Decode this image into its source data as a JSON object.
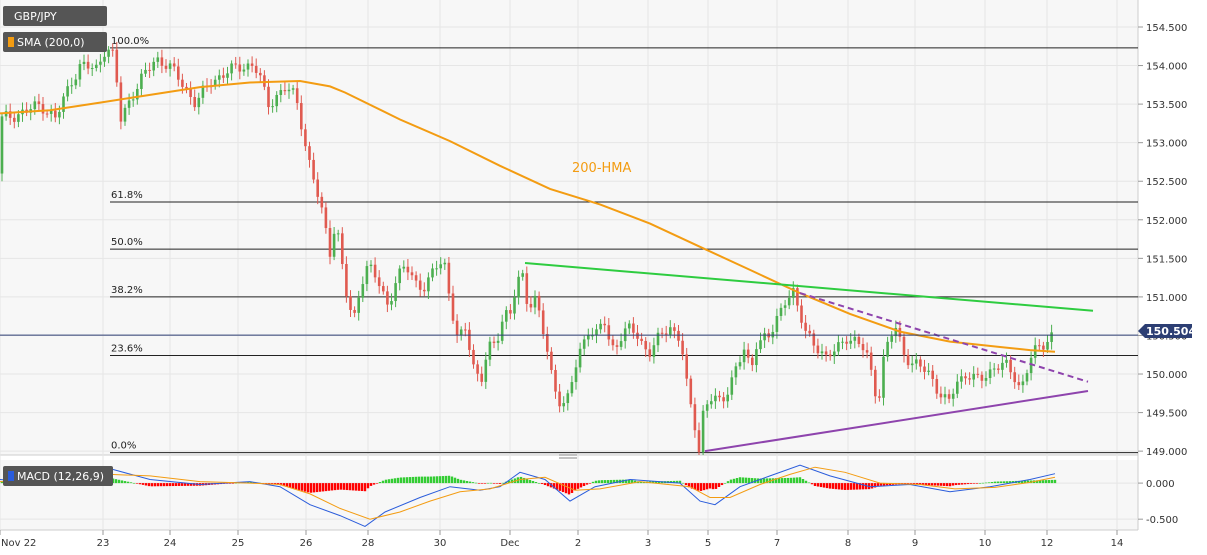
{
  "chart_data": [
    {
      "type": "candlestick",
      "symbol": "GBP/JPY",
      "indicator_label": "SMA (200,0)",
      "last_price": "150.504",
      "hma_annotation": "200-HMA",
      "ylim": [
        148.95,
        154.85
      ],
      "y_ticks": [
        "154.500",
        "154.000",
        "153.500",
        "153.000",
        "152.500",
        "152.000",
        "151.500",
        "151.000",
        "150.500",
        "150.000",
        "149.500",
        "149.000"
      ],
      "x_ticks": [
        "Nov 22",
        "23",
        "24",
        "25",
        "26",
        "28",
        "30",
        "Dec",
        "2",
        "3",
        "5",
        "7",
        "8",
        "9",
        "10",
        "12",
        "14"
      ],
      "fibonacci": [
        {
          "label": "100.0%",
          "value": 154.23
        },
        {
          "label": "61.8%",
          "value": 152.23
        },
        {
          "label": "50.0%",
          "value": 151.62
        },
        {
          "label": "38.2%",
          "value": 151.0
        },
        {
          "label": "23.6%",
          "value": 150.24
        },
        {
          "label": "0.0%",
          "value": 148.98
        }
      ],
      "trendlines": [
        {
          "name": "upper-resistance",
          "color": "#2ecc40",
          "style": "solid",
          "points": [
            [
              525,
              151.44
            ],
            [
              1093,
              150.82
            ]
          ]
        },
        {
          "name": "descending-dashed",
          "color": "#8e44ad",
          "style": "dashed",
          "points": [
            [
              800,
              151.05
            ],
            [
              1088,
              149.9
            ]
          ]
        },
        {
          "name": "rising-support",
          "color": "#8e44ad",
          "style": "solid",
          "points": [
            [
              705,
              149.0
            ],
            [
              1088,
              149.78
            ]
          ]
        }
      ],
      "hma_color": "#f39c12",
      "price_color_up": "#4caf50",
      "price_color_down": "#e05a50",
      "price_key_points": [
        [
          0,
          152.6
        ],
        [
          6,
          153.3
        ],
        [
          15,
          153.35
        ],
        [
          30,
          153.4
        ],
        [
          45,
          153.5
        ],
        [
          60,
          153.3
        ],
        [
          75,
          153.8
        ],
        [
          85,
          154.0
        ],
        [
          100,
          153.95
        ],
        [
          110,
          154.25
        ],
        [
          118,
          154.1
        ],
        [
          125,
          153.3
        ],
        [
          135,
          153.6
        ],
        [
          145,
          153.8
        ],
        [
          160,
          154.1
        ],
        [
          172,
          154.0
        ],
        [
          185,
          153.8
        ],
        [
          200,
          153.5
        ],
        [
          215,
          153.8
        ],
        [
          230,
          153.9
        ],
        [
          245,
          154.0
        ],
        [
          258,
          154.0
        ],
        [
          265,
          153.8
        ],
        [
          272,
          153.5
        ],
        [
          280,
          153.6
        ],
        [
          290,
          153.7
        ],
        [
          300,
          153.6
        ],
        [
          305,
          153.3
        ],
        [
          312,
          152.8
        ],
        [
          320,
          152.4
        ],
        [
          328,
          152.0
        ],
        [
          334,
          151.6
        ],
        [
          340,
          152.0
        ],
        [
          345,
          151.5
        ],
        [
          352,
          150.9
        ],
        [
          358,
          150.7
        ],
        [
          365,
          151.2
        ],
        [
          372,
          151.4
        ],
        [
          382,
          151.2
        ],
        [
          392,
          150.9
        ],
        [
          400,
          151.2
        ],
        [
          410,
          151.4
        ],
        [
          420,
          151.2
        ],
        [
          430,
          151.1
        ],
        [
          440,
          151.4
        ],
        [
          448,
          151.5
        ],
        [
          455,
          150.9
        ],
        [
          462,
          150.4
        ],
        [
          470,
          150.6
        ],
        [
          478,
          150.1
        ],
        [
          485,
          149.9
        ],
        [
          492,
          150.3
        ],
        [
          500,
          150.4
        ],
        [
          508,
          150.8
        ],
        [
          515,
          150.8
        ],
        [
          520,
          151.1
        ],
        [
          526,
          151.3
        ],
        [
          532,
          150.9
        ],
        [
          540,
          151.0
        ],
        [
          548,
          150.5
        ],
        [
          555,
          150.0
        ],
        [
          562,
          149.7
        ],
        [
          570,
          149.6
        ],
        [
          578,
          150.0
        ],
        [
          585,
          150.3
        ],
        [
          592,
          150.6
        ],
        [
          600,
          150.5
        ],
        [
          608,
          150.7
        ],
        [
          615,
          150.3
        ],
        [
          625,
          150.5
        ],
        [
          635,
          150.6
        ],
        [
          645,
          150.4
        ],
        [
          655,
          150.3
        ],
        [
          665,
          150.5
        ],
        [
          675,
          150.6
        ],
        [
          683,
          150.5
        ],
        [
          688,
          150.2
        ],
        [
          692,
          149.7
        ],
        [
          698,
          149.4
        ],
        [
          703,
          149.0
        ],
        [
          708,
          149.6
        ],
        [
          715,
          149.7
        ],
        [
          725,
          149.6
        ],
        [
          732,
          149.8
        ],
        [
          740,
          150.1
        ],
        [
          748,
          150.3
        ],
        [
          755,
          150.0
        ],
        [
          760,
          150.4
        ],
        [
          768,
          150.5
        ],
        [
          775,
          150.5
        ],
        [
          782,
          150.7
        ],
        [
          790,
          151.0
        ],
        [
          797,
          151.1
        ],
        [
          803,
          150.8
        ],
        [
          810,
          150.5
        ],
        [
          820,
          150.4
        ],
        [
          830,
          150.2
        ],
        [
          840,
          150.3
        ],
        [
          850,
          150.5
        ],
        [
          860,
          150.4
        ],
        [
          870,
          150.3
        ],
        [
          878,
          149.9
        ],
        [
          882,
          149.6
        ],
        [
          888,
          150.2
        ],
        [
          895,
          150.5
        ],
        [
          900,
          150.6
        ],
        [
          908,
          150.3
        ],
        [
          916,
          150.1
        ],
        [
          925,
          150.1
        ],
        [
          935,
          150.0
        ],
        [
          945,
          149.7
        ],
        [
          952,
          149.6
        ],
        [
          960,
          149.9
        ],
        [
          970,
          150.0
        ],
        [
          980,
          149.9
        ],
        [
          990,
          150.0
        ],
        [
          1000,
          150.1
        ],
        [
          1010,
          150.1
        ],
        [
          1018,
          150.0
        ],
        [
          1025,
          149.8
        ],
        [
          1030,
          150.0
        ],
        [
          1035,
          150.2
        ],
        [
          1040,
          150.3
        ],
        [
          1047,
          150.4
        ],
        [
          1055,
          150.5
        ]
      ],
      "hma_key_points": [
        [
          0,
          153.38
        ],
        [
          50,
          153.42
        ],
        [
          100,
          153.52
        ],
        [
          150,
          153.62
        ],
        [
          200,
          153.72
        ],
        [
          250,
          153.78
        ],
        [
          300,
          153.8
        ],
        [
          330,
          153.73
        ],
        [
          345,
          153.65
        ],
        [
          400,
          153.3
        ],
        [
          450,
          153.02
        ],
        [
          500,
          152.7
        ],
        [
          550,
          152.4
        ],
        [
          600,
          152.2
        ],
        [
          650,
          151.95
        ],
        [
          700,
          151.65
        ],
        [
          750,
          151.35
        ],
        [
          800,
          151.05
        ],
        [
          850,
          150.78
        ],
        [
          900,
          150.55
        ],
        [
          950,
          150.42
        ],
        [
          1000,
          150.35
        ],
        [
          1030,
          150.31
        ],
        [
          1055,
          150.29
        ]
      ],
      "macd_panel": {
        "label": "MACD (12,26,9)",
        "ylim": [
          -0.65,
          0.32
        ],
        "y_ticks": [
          "0.000",
          "-0.500"
        ],
        "hist_positive_color": "#33cc33",
        "hist_negative_color": "#ff0000",
        "macd_color": "#2a5cdb",
        "signal_color": "#f39c12",
        "macd_key_points": [
          [
            0,
            0.05
          ],
          [
            40,
            0.0
          ],
          [
            80,
            0.05
          ],
          [
            110,
            0.2
          ],
          [
            150,
            0.05
          ],
          [
            200,
            -0.02
          ],
          [
            250,
            0.02
          ],
          [
            280,
            -0.05
          ],
          [
            310,
            -0.3
          ],
          [
            340,
            -0.45
          ],
          [
            365,
            -0.6
          ],
          [
            385,
            -0.4
          ],
          [
            420,
            -0.2
          ],
          [
            450,
            -0.05
          ],
          [
            480,
            -0.1
          ],
          [
            500,
            -0.05
          ],
          [
            520,
            0.15
          ],
          [
            545,
            0.05
          ],
          [
            570,
            -0.25
          ],
          [
            595,
            -0.05
          ],
          [
            630,
            0.05
          ],
          [
            680,
            0.0
          ],
          [
            700,
            -0.25
          ],
          [
            715,
            -0.3
          ],
          [
            740,
            -0.05
          ],
          [
            770,
            0.1
          ],
          [
            800,
            0.25
          ],
          [
            830,
            0.1
          ],
          [
            870,
            -0.05
          ],
          [
            910,
            -0.02
          ],
          [
            950,
            -0.12
          ],
          [
            990,
            -0.05
          ],
          [
            1030,
            0.05
          ],
          [
            1055,
            0.13
          ]
        ],
        "signal_key_points": [
          [
            0,
            0.02
          ],
          [
            40,
            0.02
          ],
          [
            80,
            0.03
          ],
          [
            110,
            0.12
          ],
          [
            150,
            0.1
          ],
          [
            200,
            0.02
          ],
          [
            250,
            0.0
          ],
          [
            280,
            -0.02
          ],
          [
            310,
            -0.15
          ],
          [
            340,
            -0.35
          ],
          [
            370,
            -0.5
          ],
          [
            400,
            -0.4
          ],
          [
            430,
            -0.25
          ],
          [
            460,
            -0.12
          ],
          [
            490,
            -0.08
          ],
          [
            520,
            0.05
          ],
          [
            545,
            0.08
          ],
          [
            575,
            -0.1
          ],
          [
            600,
            -0.08
          ],
          [
            640,
            0.02
          ],
          [
            690,
            -0.05
          ],
          [
            710,
            -0.2
          ],
          [
            730,
            -0.2
          ],
          [
            760,
            -0.02
          ],
          [
            790,
            0.12
          ],
          [
            815,
            0.22
          ],
          [
            845,
            0.15
          ],
          [
            880,
            0.0
          ],
          [
            920,
            -0.02
          ],
          [
            955,
            -0.08
          ],
          [
            995,
            -0.06
          ],
          [
            1030,
            0.01
          ],
          [
            1055,
            0.08
          ]
        ]
      }
    }
  ]
}
